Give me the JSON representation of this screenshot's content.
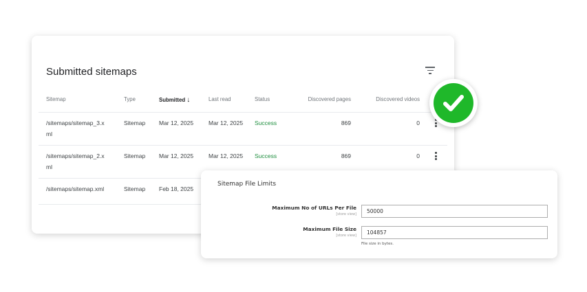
{
  "sitemaps_card": {
    "title": "Submitted sitemaps",
    "columns": [
      "Sitemap",
      "Type",
      "Submitted",
      "Last read",
      "Status",
      "Discovered pages",
      "Discovered videos"
    ],
    "sort_icon": "arrow-down-icon",
    "rows": [
      {
        "sitemap_line1": "/sitemaps/sitemap_3.x",
        "sitemap_line2": "ml",
        "type": "Sitemap",
        "submitted": "Mar 12, 2025",
        "last_read": "Mar 12, 2025",
        "status": "Success",
        "pages": "869",
        "videos": "0"
      },
      {
        "sitemap_line1": "/sitemaps/sitemap_2.x",
        "sitemap_line2": "ml",
        "type": "Sitemap",
        "submitted": "Mar 12, 2025",
        "last_read": "Mar 12, 2025",
        "status": "Success",
        "pages": "869",
        "videos": "0"
      },
      {
        "sitemap_line1": "/sitemaps/sitemap.xml",
        "type": "Sitemap",
        "submitted": "Feb 18, 2025"
      }
    ],
    "status_color": "#1e8e3e"
  },
  "check_badge": {
    "color": "#1fb82a"
  },
  "limits_card": {
    "title": "Sitemap File Limits",
    "fields": [
      {
        "label": "Maximum No of URLs Per File",
        "scope": "[store view]",
        "value": "50000"
      },
      {
        "label": "Maximum File Size",
        "scope": "[store view]",
        "value": "104857",
        "note": "File size in bytes."
      }
    ]
  }
}
